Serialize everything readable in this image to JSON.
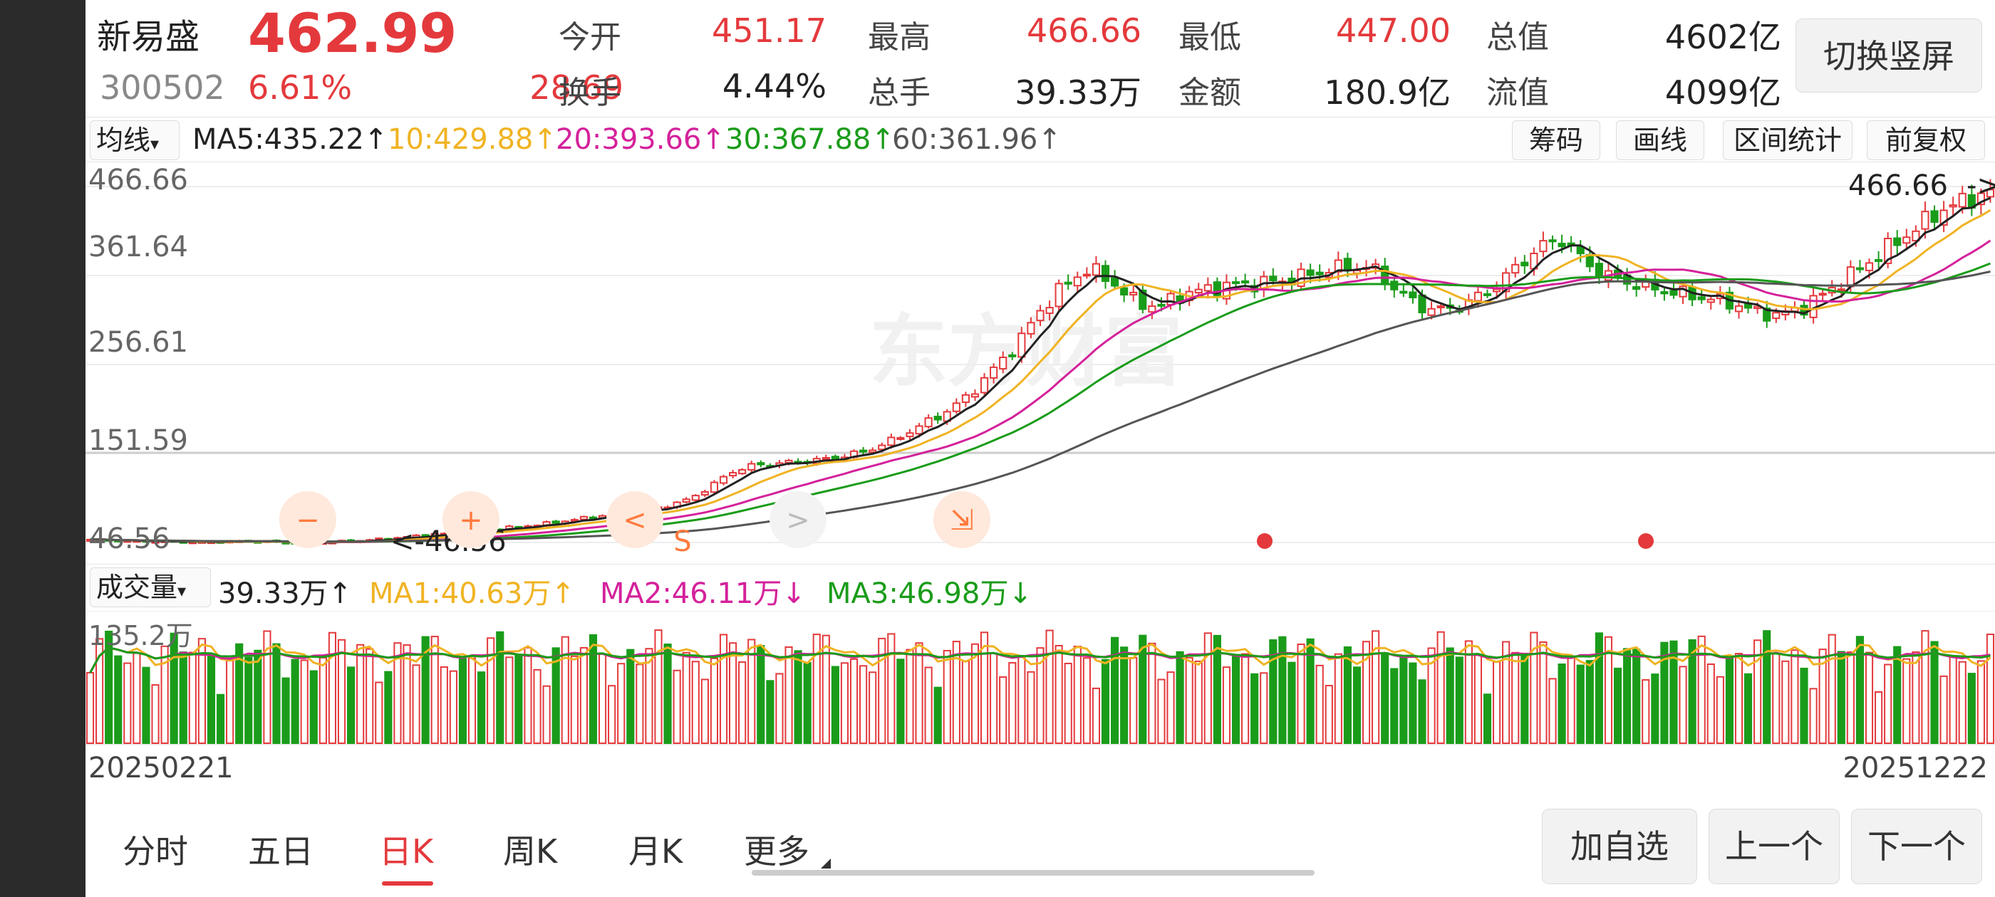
{
  "header": {
    "name": "新易盛",
    "code": "300502",
    "price": "462.99",
    "change_pct": "6.61%",
    "change_amt": "28.69",
    "quotes": [
      {
        "label": "今开",
        "value": "451.17",
        "color": "#e4393c"
      },
      {
        "label": "最高",
        "value": "466.66",
        "color": "#e4393c"
      },
      {
        "label": "最低",
        "value": "447.00",
        "color": "#e4393c"
      },
      {
        "label": "总值",
        "value": "4602亿",
        "color": "#222222"
      },
      {
        "label": "换手",
        "value": "4.44%",
        "color": "#222222"
      },
      {
        "label": "总手",
        "value": "39.33万",
        "color": "#222222"
      },
      {
        "label": "金额",
        "value": "180.9亿",
        "color": "#222222"
      },
      {
        "label": "流值",
        "value": "4099亿",
        "color": "#222222"
      }
    ],
    "switch_label": "切换竖屏"
  },
  "ma_bar": {
    "select_label": "均线",
    "items": [
      {
        "text": "MA5:435.22",
        "arrow": "↑",
        "color": "#222222"
      },
      {
        "text": "10:429.88",
        "arrow": "↑",
        "color": "#f0b323"
      },
      {
        "text": "20:393.66",
        "arrow": "↑",
        "color": "#d4219b"
      },
      {
        "text": "30:367.88",
        "arrow": "↑",
        "color": "#1a9c1a"
      },
      {
        "text": "60:361.96",
        "arrow": "↑",
        "color": "#555555"
      }
    ],
    "tools": [
      "筹码",
      "画线",
      "区间统计",
      "前复权"
    ]
  },
  "price_axis": [
    "466.66",
    "361.64",
    "256.61",
    "151.59",
    "46.56"
  ],
  "price_annotations": {
    "high": "466.66",
    "low": "46.56"
  },
  "watermark": "东方财富",
  "event_markers": [
    "−",
    "+",
    "<",
    "S",
    ">",
    "⇲"
  ],
  "volume_bar": {
    "select_label": "成交量",
    "items": [
      {
        "text": "39.33万",
        "arrow": "↑",
        "color": "#222222"
      },
      {
        "text": "MA1:40.63万",
        "arrow": "↑",
        "color": "#f0b323"
      },
      {
        "text": "MA2:46.11万",
        "arrow": "↓",
        "color": "#d4219b"
      },
      {
        "text": "MA3:46.98万",
        "arrow": "↓",
        "color": "#1a9c1a"
      }
    ],
    "axis_max": "135.2万"
  },
  "dates": {
    "start": "20250221",
    "end": "20251222"
  },
  "tabs": [
    "分时",
    "五日",
    "日K",
    "周K",
    "月K",
    "更多"
  ],
  "active_tab": "日K",
  "bottom_buttons": [
    "加自选",
    "上一个",
    "下一个"
  ],
  "colors": {
    "up": "#e4393c",
    "down": "#1a9c1a"
  },
  "chart_data": {
    "type": "candlestick",
    "y_range": [
      46.56,
      466.66
    ],
    "period": [
      "20250221",
      "20251222"
    ],
    "close_series": [
      50,
      49,
      48,
      48,
      47,
      47,
      48,
      48,
      47,
      46,
      47,
      48,
      50,
      52,
      55,
      57,
      60,
      62,
      65,
      68,
      72,
      76,
      80,
      84,
      88,
      95,
      110,
      130,
      138,
      140,
      142,
      145,
      150,
      158,
      170,
      185,
      200,
      220,
      250,
      280,
      320,
      350,
      370,
      355,
      330,
      325,
      340,
      345,
      350,
      352,
      355,
      360,
      368,
      372,
      370,
      345,
      325,
      320,
      330,
      345,
      370,
      395,
      405,
      375,
      360,
      352,
      345,
      340,
      335,
      330,
      320,
      315,
      322,
      340,
      360,
      380,
      400,
      420,
      440,
      450,
      462.99
    ],
    "volume_scale_max": "135.2万"
  }
}
